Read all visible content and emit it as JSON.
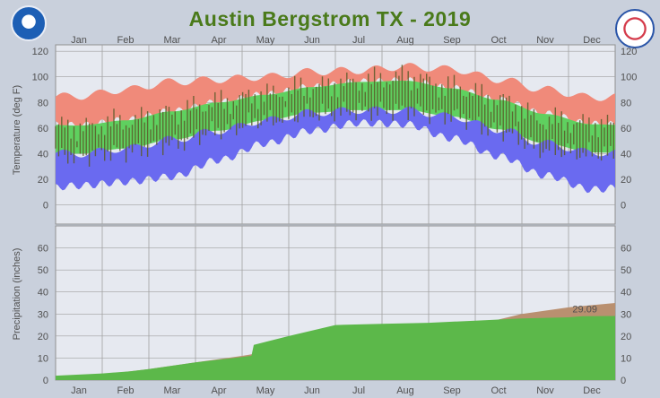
{
  "title": "Austin Bergstrom TX - 2019",
  "logos": {
    "left": "NOAA",
    "right": "NATIONAL WEATHER SERVICE"
  },
  "colors": {
    "record_band": "#f08a7a",
    "normal_band": "#5fd05f",
    "low_band": "#6a6af0",
    "observed": "#5a5a2a",
    "precip_actual": "#5cb84a",
    "precip_normal": "#b99070",
    "grid": "#a0a0a0",
    "panel": "#e6e9f0",
    "text": "#505050"
  },
  "chart_data": [
    {
      "type": "area",
      "panel": "temperature",
      "ylabel": "Temperature (deg F)",
      "yticks": [
        0,
        20,
        40,
        60,
        80,
        100,
        120
      ],
      "ylim": [
        -15,
        125
      ],
      "months": [
        "Jan",
        "Feb",
        "Mar",
        "Apr",
        "May",
        "Jun",
        "Jul",
        "Aug",
        "Sep",
        "Oct",
        "Nov",
        "Dec"
      ],
      "normal_high": [
        62,
        66,
        73,
        80,
        86,
        92,
        96,
        97,
        91,
        82,
        71,
        63
      ],
      "normal_low": [
        40,
        44,
        51,
        58,
        66,
        72,
        74,
        74,
        69,
        59,
        48,
        41
      ],
      "record_high": [
        85,
        90,
        96,
        98,
        100,
        104,
        105,
        108,
        106,
        98,
        90,
        84
      ],
      "record_low": [
        15,
        18,
        22,
        35,
        48,
        58,
        64,
        63,
        52,
        38,
        23,
        12
      ],
      "observed_high": [
        60,
        65,
        72,
        80,
        86,
        92,
        96,
        100,
        92,
        82,
        66,
        63
      ],
      "observed_low": [
        38,
        42,
        48,
        58,
        66,
        71,
        73,
        74,
        70,
        58,
        43,
        40
      ],
      "grid": true
    },
    {
      "type": "area",
      "panel": "precipitation",
      "ylabel": "Precipitation (inches)",
      "yticks": [
        0,
        10,
        20,
        30,
        40,
        50,
        60
      ],
      "ylim": [
        0,
        70
      ],
      "series": [
        {
          "name": "",
          "x": [
            0,
            1,
            1.6,
            2,
            3,
            4.2,
            4.25,
            5,
            6,
            7,
            8,
            9,
            10,
            11,
            11.3,
            12
          ],
          "values": [
            2,
            3,
            4,
            5,
            8,
            11,
            16,
            20,
            25,
            25.5,
            26,
            27,
            28,
            28.5,
            29,
            29.09
          ]
        },
        {
          "name": "",
          "x": [
            0,
            1,
            2,
            3,
            4,
            5,
            6,
            7,
            8,
            9,
            10,
            11,
            12
          ],
          "values": [
            0,
            2.5,
            5,
            8,
            11,
            14.5,
            17,
            19.5,
            21.5,
            25,
            30,
            33,
            35
          ]
        }
      ],
      "annotation": "29.09",
      "grid": true
    }
  ]
}
